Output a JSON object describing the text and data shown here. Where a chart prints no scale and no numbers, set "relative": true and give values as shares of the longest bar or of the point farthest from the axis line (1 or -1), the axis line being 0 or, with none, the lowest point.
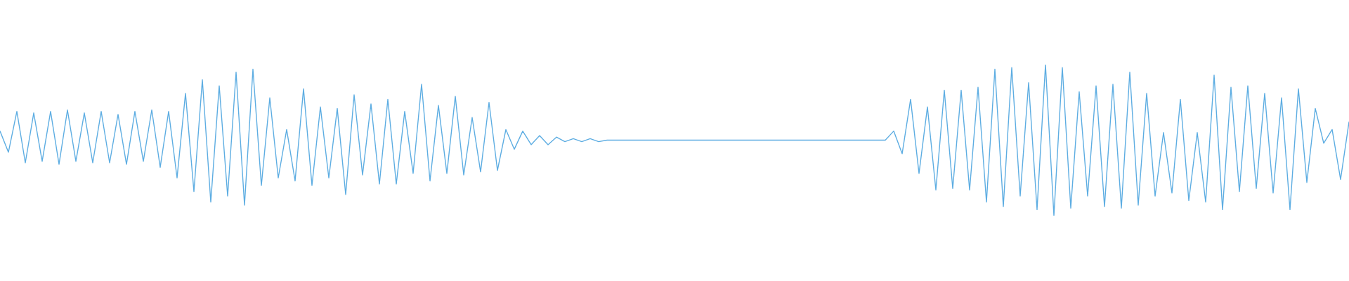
{
  "chart_data": {
    "type": "line",
    "relative": true,
    "line_style": "solid",
    "categories": [
      null,
      null,
      null,
      null,
      null,
      null,
      null,
      null,
      null,
      null,
      null,
      null,
      null,
      null,
      null,
      null,
      null,
      null,
      null,
      null,
      null,
      null,
      null,
      null,
      null,
      null,
      null,
      null,
      null,
      null,
      null,
      null,
      null,
      null,
      null,
      null,
      null,
      null,
      null,
      null,
      null,
      null,
      null,
      null,
      null,
      null,
      null,
      null,
      null,
      null,
      null,
      null,
      null,
      null,
      null,
      null,
      null,
      null,
      null,
      null,
      null,
      null,
      null,
      null,
      null,
      null,
      null,
      null,
      null,
      null,
      null,
      null,
      null,
      null,
      null,
      null,
      null,
      null,
      null,
      null,
      null,
      null,
      null,
      null,
      null,
      null,
      null,
      null,
      null,
      null,
      null,
      null,
      null,
      null,
      null,
      null,
      null,
      null,
      null,
      null,
      null,
      null,
      null,
      null,
      null,
      null,
      null,
      null,
      null,
      null,
      null,
      null,
      null,
      null,
      null,
      null,
      null,
      null,
      null,
      null,
      null,
      null,
      null,
      null,
      null,
      null,
      null,
      null,
      null,
      null,
      null,
      null,
      null,
      null,
      null,
      null,
      null,
      null,
      null,
      null,
      null,
      null,
      null,
      null,
      null,
      null,
      null,
      null,
      null,
      null,
      null,
      null,
      null,
      null,
      null,
      null,
      null,
      null,
      null,
      null,
      null
    ],
    "series": [
      {
        "color": "#5dade2",
        "values": [
          0.56,
          0.42,
          0.69,
          0.35,
          0.68,
          0.36,
          0.69,
          0.34,
          0.7,
          0.36,
          0.68,
          0.35,
          0.69,
          0.35,
          0.67,
          0.34,
          0.69,
          0.36,
          0.7,
          0.32,
          0.69,
          0.25,
          0.81,
          0.16,
          0.9,
          0.09,
          0.86,
          0.13,
          0.95,
          0.07,
          0.97,
          0.2,
          0.78,
          0.25,
          0.57,
          0.23,
          0.84,
          0.2,
          0.72,
          0.25,
          0.71,
          0.14,
          0.8,
          0.27,
          0.74,
          0.21,
          0.77,
          0.21,
          0.69,
          0.28,
          0.87,
          0.23,
          0.73,
          0.28,
          0.79,
          0.27,
          0.65,
          0.29,
          0.75,
          0.3,
          0.57,
          0.44,
          0.56,
          0.47,
          0.53,
          0.47,
          0.52,
          0.49,
          0.51,
          0.49,
          0.51,
          0.49,
          0.5,
          0.5,
          0.5,
          0.5,
          0.5,
          0.5,
          0.5,
          0.5,
          0.5,
          0.5,
          0.5,
          0.5,
          0.5,
          0.5,
          0.5,
          0.5,
          0.5,
          0.5,
          0.5,
          0.5,
          0.5,
          0.5,
          0.5,
          0.5,
          0.5,
          0.5,
          0.5,
          0.5,
          0.5,
          0.5,
          0.5,
          0.5,
          0.5,
          0.5,
          0.56,
          0.41,
          0.77,
          0.28,
          0.72,
          0.17,
          0.83,
          0.18,
          0.83,
          0.17,
          0.85,
          0.09,
          0.97,
          0.06,
          0.98,
          0.13,
          0.88,
          0.04,
          1.0,
          0.0,
          0.98,
          0.05,
          0.82,
          0.13,
          0.86,
          0.06,
          0.87,
          0.05,
          0.95,
          0.07,
          0.81,
          0.13,
          0.55,
          0.15,
          0.77,
          0.1,
          0.55,
          0.09,
          0.93,
          0.04,
          0.85,
          0.16,
          0.86,
          0.18,
          0.81,
          0.15,
          0.78,
          0.04,
          0.84,
          0.22,
          0.71,
          0.48,
          0.57,
          0.24,
          0.62
        ]
      }
    ]
  }
}
